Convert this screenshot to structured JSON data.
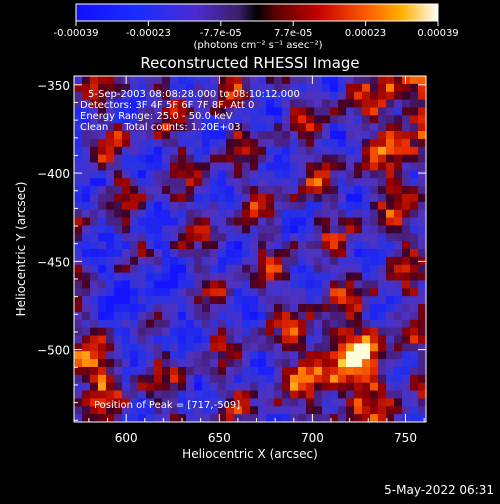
{
  "chart_data": {
    "type": "heatmap",
    "title": "Reconstructed RHESSI Image",
    "xlabel": "Heliocentric X (arcsec)",
    "ylabel": "Heliocentric Y (arcsec)",
    "xlim": [
      572,
      761
    ],
    "ylim": [
      -541,
      -345
    ],
    "xticks": [
      600,
      650,
      700,
      750
    ],
    "yticks": [
      -350,
      -400,
      -450,
      -500
    ],
    "colorbar": {
      "ticks": [
        "-0.00039",
        "-0.00023",
        "-7.7e-05",
        "7.7e-05",
        "0.00023",
        "0.00039"
      ],
      "range": [
        -0.00039,
        0.00039
      ],
      "units": "(photons cm⁻² s⁻¹ asec⁻²)"
    },
    "annotations": [
      "5-Sep-2003 08:08:28.000 to 08:10:12.000",
      "Detectors: 3F 4F 5F 6F 7F 8F, Att 0",
      "Energy Range: 25.0 - 50.0 keV",
      "Clean     Total counts: 1.20E+03"
    ],
    "peak_label": "Position of Peak = [717,-509]",
    "peak": {
      "x": 717,
      "y": -509
    },
    "image_note": "Noisy reconstructed map: mostly negative (blue/purple) background with patchy positive (red/orange/yellow) emission, brightest near the peak at [717,-509] and along the top-right edge."
  },
  "footer_date": "5-May-2022 06:31"
}
